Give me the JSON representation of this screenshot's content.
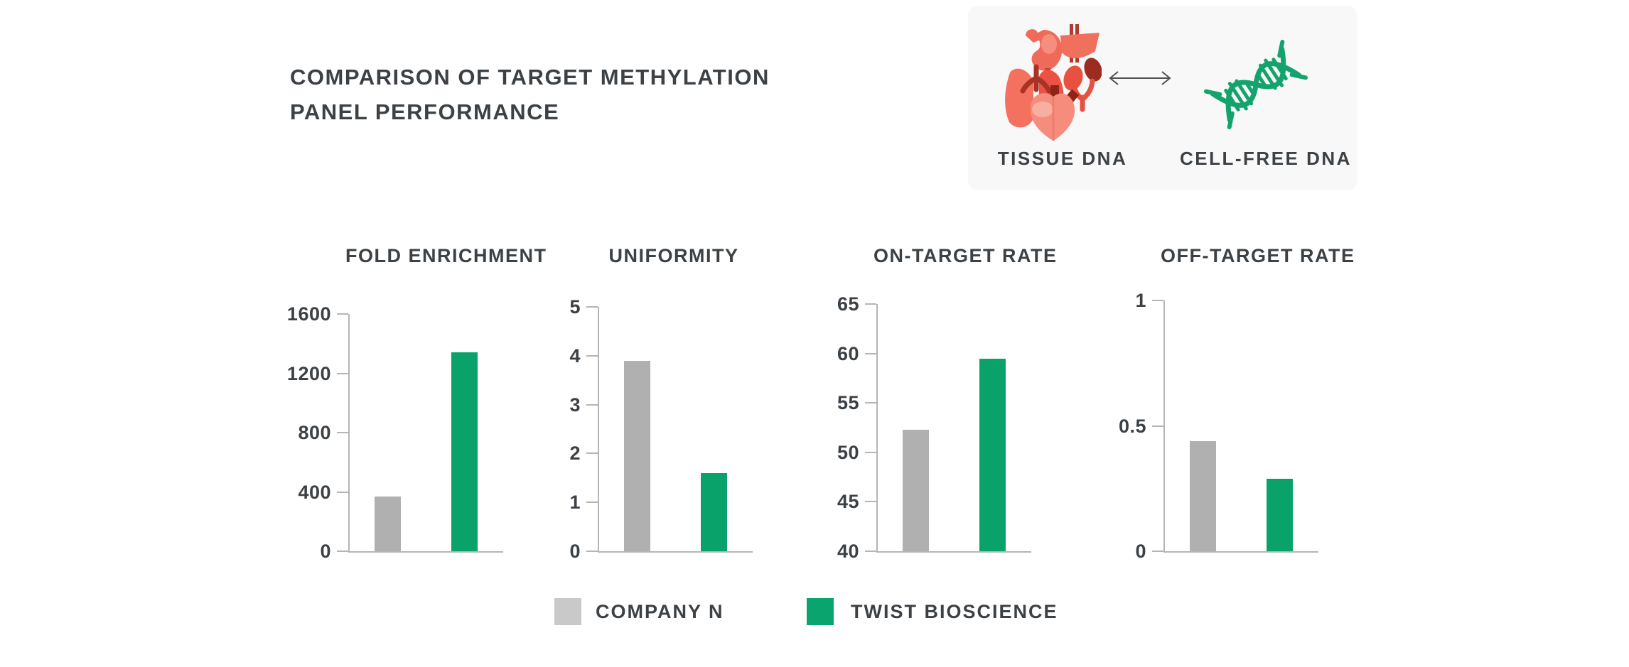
{
  "page": {
    "title_line1": "COMPARISON OF TARGET METHYLATION",
    "title_line2": "PANEL PERFORMANCE"
  },
  "comparison_card": {
    "left_icon": "tissue-organs-icon",
    "middle_icon": "double-arrow-icon",
    "right_icon": "dna-helix-icon",
    "left_label": "TISSUE DNA",
    "right_label": "CELL-FREE DNA"
  },
  "colors": {
    "text_dark": "#3c4146",
    "axis_gray": "#b5b5b5",
    "company_n_bar": "#b0b0b0",
    "twist_green_bar": "#0aa26b",
    "legend_gray": "#c9c9c9",
    "legend_green": "#0aa56e",
    "card_background": "#f8f8f8",
    "organ_red": "#ee5a48",
    "dna_green": "#14a36d"
  },
  "legend": {
    "items": [
      {
        "label": "COMPANY N",
        "color": "#c9c9c9"
      },
      {
        "label": "TWIST BIOSCIENCE",
        "color": "#0aa56e"
      }
    ]
  },
  "chart_data": [
    {
      "type": "bar",
      "title": "FOLD ENRICHMENT",
      "categories": [
        "COMPANY N",
        "TWIST BIOSCIENCE"
      ],
      "values": [
        370,
        1340
      ],
      "ylim": [
        0,
        1600
      ],
      "yticks": [
        0,
        400,
        800,
        1200,
        1600
      ],
      "xlabel": "",
      "ylabel": "",
      "grid": false,
      "legend_position": "bottom"
    },
    {
      "type": "bar",
      "title": "UNIFORMITY",
      "categories": [
        "COMPANY N",
        "TWIST BIOSCIENCE"
      ],
      "values": [
        3.9,
        1.6
      ],
      "ylim": [
        0,
        5
      ],
      "yticks": [
        0,
        1,
        2,
        3,
        4,
        5
      ],
      "xlabel": "",
      "ylabel": "",
      "grid": false,
      "legend_position": "bottom"
    },
    {
      "type": "bar",
      "title": "ON-TARGET RATE",
      "categories": [
        "COMPANY N",
        "TWIST BIOSCIENCE"
      ],
      "values": [
        52.3,
        59.5
      ],
      "ylim": [
        40,
        65
      ],
      "yticks": [
        40,
        45,
        50,
        55,
        60,
        65
      ],
      "xlabel": "",
      "ylabel": "",
      "grid": false,
      "legend_position": "bottom"
    },
    {
      "type": "bar",
      "title": "OFF-TARGET RATE",
      "categories": [
        "COMPANY N",
        "TWIST BIOSCIENCE"
      ],
      "values": [
        0.44,
        0.29
      ],
      "ylim": [
        0,
        1
      ],
      "yticks": [
        0,
        0.5,
        1
      ],
      "xlabel": "",
      "ylabel": "",
      "grid": false,
      "legend_position": "bottom"
    }
  ]
}
